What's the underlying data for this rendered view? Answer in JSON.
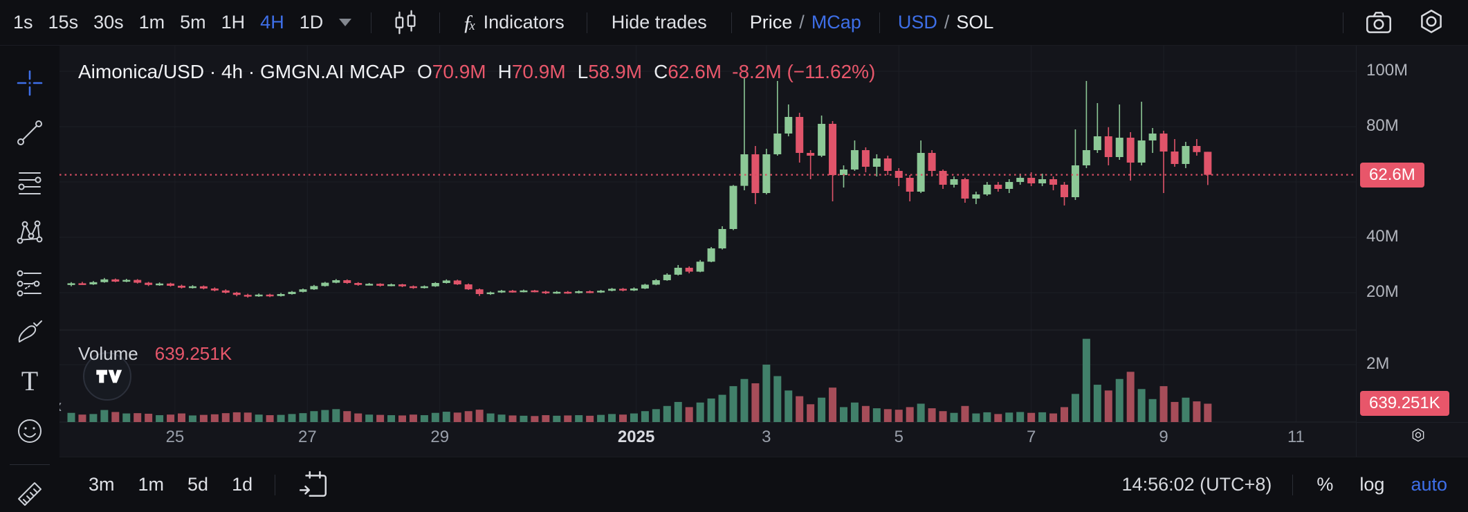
{
  "toolbar": {
    "timeframes": [
      "1s",
      "15s",
      "30s",
      "1m",
      "5m",
      "1H",
      "4H",
      "1D"
    ],
    "active_timeframe": "4H",
    "indicators": "Indicators",
    "hide_trades": "Hide trades",
    "price": "Price",
    "mcap": "MCap",
    "usd": "USD",
    "sol": "SOL",
    "slash": "/"
  },
  "legend": {
    "title": "Aimonica/USD · 4h · GMGN.AI MCAP",
    "o_label": "O",
    "o_value": "70.9M",
    "h_label": "H",
    "h_value": "70.9M",
    "l_label": "L",
    "l_value": "58.9M",
    "c_label": "C",
    "c_value": "62.6M",
    "change": "-8.2M (−11.62%)"
  },
  "volume_legend": {
    "label": "Volume",
    "value": "639.251K"
  },
  "bottom_bar": {
    "ranges": [
      "3m",
      "1m",
      "5d",
      "1d"
    ],
    "clock": "14:56:02 (UTC+8)",
    "percent": "%",
    "log": "log",
    "auto": "auto"
  },
  "edge_marker": "«",
  "colors": {
    "up": "#8cc896",
    "down": "#e0546a",
    "vol_up": "#41806a",
    "vol_down": "#a64d59",
    "accent_blue": "#3e6fe8",
    "badge": "#e8566a",
    "last_price_line": "#d84f63",
    "grid": "#1c1e25",
    "pane_divider": "#23262e"
  },
  "chart_data": {
    "type": "candlestick",
    "title": "Aimonica/USD · 4h · GMGN.AI MCAP",
    "symbol": "Aimonica/USD",
    "interval": "4h",
    "source": "GMGN.AI MCAP",
    "price_unit": "M",
    "volume_unit": "K",
    "last_price": 62.6,
    "last_price_label": "62.6M",
    "last_volume_k": 639.251,
    "last_volume_label": "639.251K",
    "ohlc_last": {
      "open": 70.9,
      "high": 70.9,
      "low": 58.9,
      "close": 62.6,
      "change": -8.2,
      "change_pct": -11.62
    },
    "price_ticks": [
      {
        "label": "100M",
        "value": 100
      },
      {
        "label": "80M",
        "value": 80
      },
      {
        "label": "60M",
        "value": 60
      },
      {
        "label": "40M",
        "value": 40
      },
      {
        "label": "20M",
        "value": 20
      }
    ],
    "volume_tick": {
      "label": "2M",
      "value_k": 2000
    },
    "time_ticks": [
      {
        "label": "25",
        "i": 9.4
      },
      {
        "label": "27",
        "i": 21.4
      },
      {
        "label": "29",
        "i": 33.4
      },
      {
        "label": "2025",
        "i": 51.2
      },
      {
        "label": "3",
        "i": 63
      },
      {
        "label": "5",
        "i": 75
      },
      {
        "label": "7",
        "i": 87
      },
      {
        "label": "9",
        "i": 99
      },
      {
        "label": "11",
        "i": 111
      }
    ],
    "candles_format": [
      "open",
      "high",
      "low",
      "close",
      "volume_k"
    ],
    "candles": [
      [
        22.8,
        23.8,
        22.3,
        23.4,
        320
      ],
      [
        23.4,
        23.9,
        22.8,
        23,
        260
      ],
      [
        23,
        24.2,
        22.8,
        23.8,
        280
      ],
      [
        23.8,
        25.3,
        23.6,
        24.8,
        420
      ],
      [
        24.8,
        25.1,
        23.8,
        24,
        350
      ],
      [
        24,
        25,
        23.8,
        24.6,
        300
      ],
      [
        24.6,
        24.9,
        23.3,
        23.6,
        310
      ],
      [
        23.6,
        23.9,
        22.4,
        22.8,
        290
      ],
      [
        22.8,
        23.7,
        22.5,
        23.3,
        240
      ],
      [
        23.3,
        23.6,
        22.2,
        22.5,
        260
      ],
      [
        22.5,
        22.9,
        21.5,
        21.8,
        300
      ],
      [
        21.8,
        22.7,
        21.5,
        22.3,
        230
      ],
      [
        22.3,
        22.6,
        21.2,
        21.5,
        250
      ],
      [
        21.5,
        21.9,
        20.5,
        20.8,
        270
      ],
      [
        20.8,
        21.2,
        19.7,
        20,
        310
      ],
      [
        20,
        20.3,
        18.7,
        19.2,
        340
      ],
      [
        19.2,
        19.6,
        18.2,
        18.7,
        330
      ],
      [
        18.7,
        19.7,
        18.5,
        19.3,
        260
      ],
      [
        19.3,
        19.6,
        18.4,
        18.8,
        240
      ],
      [
        18.8,
        19.9,
        18.6,
        19.5,
        250
      ],
      [
        19.5,
        20.6,
        19.3,
        20.3,
        280
      ],
      [
        20.3,
        21.5,
        20.1,
        21.2,
        310
      ],
      [
        21.2,
        22.8,
        21,
        22.4,
        380
      ],
      [
        22.4,
        23.9,
        22.2,
        23.6,
        420
      ],
      [
        23.6,
        24.9,
        23.4,
        24.5,
        450
      ],
      [
        24.5,
        24.8,
        23.2,
        23.5,
        380
      ],
      [
        23.5,
        23.8,
        22.5,
        22.8,
        300
      ],
      [
        22.8,
        23.5,
        22.6,
        23.2,
        260
      ],
      [
        23.2,
        23.4,
        22.2,
        22.5,
        250
      ],
      [
        22.5,
        23.3,
        22.3,
        23,
        240
      ],
      [
        23,
        23.2,
        22,
        22.3,
        230
      ],
      [
        22.3,
        22.6,
        21.4,
        21.7,
        260
      ],
      [
        21.7,
        22.6,
        21.5,
        22.3,
        240
      ],
      [
        22.3,
        23.8,
        22.1,
        23.5,
        320
      ],
      [
        23.5,
        24.8,
        23.3,
        24.4,
        360
      ],
      [
        24.4,
        24.7,
        22.8,
        23,
        330
      ],
      [
        23,
        23.3,
        21,
        21.2,
        380
      ],
      [
        21.2,
        21.5,
        18.8,
        19.5,
        430
      ],
      [
        19.5,
        20.4,
        19.2,
        20.1,
        300
      ],
      [
        20.1,
        21,
        19.9,
        20.7,
        260
      ],
      [
        20.7,
        21,
        20,
        20.3,
        230
      ],
      [
        20.3,
        21.1,
        20.1,
        20.8,
        220
      ],
      [
        20.8,
        21,
        20.1,
        20.4,
        210
      ],
      [
        20.4,
        20.7,
        19.5,
        19.8,
        240
      ],
      [
        19.8,
        20.6,
        19.6,
        20.3,
        220
      ],
      [
        20.3,
        20.6,
        19.6,
        19.9,
        230
      ],
      [
        19.9,
        20.8,
        19.7,
        20.5,
        240
      ],
      [
        20.5,
        20.8,
        19.8,
        20.1,
        220
      ],
      [
        20.1,
        21,
        19.9,
        20.7,
        250
      ],
      [
        20.7,
        21.7,
        20.5,
        21.4,
        280
      ],
      [
        21.4,
        21.7,
        20.5,
        20.8,
        260
      ],
      [
        20.8,
        21.9,
        20.6,
        21.5,
        300
      ],
      [
        21.5,
        23.2,
        21.3,
        22.9,
        380
      ],
      [
        22.9,
        24.9,
        22.7,
        24.5,
        450
      ],
      [
        24.5,
        27,
        24.3,
        26.5,
        560
      ],
      [
        26.5,
        30,
        26.2,
        29,
        700
      ],
      [
        29,
        29.5,
        27,
        27.6,
        520
      ],
      [
        27.6,
        31.8,
        27.4,
        31.2,
        680
      ],
      [
        31.2,
        36.5,
        31,
        36,
        820
      ],
      [
        36,
        44,
        35.6,
        43,
        950
      ],
      [
        43,
        58.9,
        42.6,
        58.6,
        1250
      ],
      [
        58.6,
        97.5,
        57,
        70,
        1500
      ],
      [
        70,
        73,
        52,
        56,
        1350
      ],
      [
        56,
        72,
        55.5,
        70,
        2000
      ],
      [
        70,
        96.5,
        69.5,
        77.5,
        1600
      ],
      [
        77.5,
        88,
        76.5,
        83.5,
        1100
      ],
      [
        83.5,
        85,
        67,
        70.5,
        900
      ],
      [
        70.5,
        71.5,
        61,
        69.5,
        620
      ],
      [
        69.5,
        84,
        69,
        81,
        850
      ],
      [
        81,
        82,
        53,
        62.5,
        1200
      ],
      [
        62.5,
        66,
        58,
        64.5,
        520
      ],
      [
        64.5,
        75,
        64,
        71.5,
        680
      ],
      [
        71.5,
        72.5,
        63.5,
        65.5,
        560
      ],
      [
        65.5,
        70,
        62,
        68.5,
        480
      ],
      [
        68.5,
        69.5,
        62.5,
        64,
        450
      ],
      [
        64,
        65,
        58.5,
        61.5,
        430
      ],
      [
        61.5,
        62.5,
        53,
        56.5,
        520
      ],
      [
        56.5,
        75,
        56,
        70.5,
        640
      ],
      [
        70.5,
        71.5,
        62,
        64,
        480
      ],
      [
        64,
        64.5,
        57.5,
        59,
        380
      ],
      [
        59,
        62,
        58,
        61,
        320
      ],
      [
        61,
        61.5,
        52.5,
        54,
        560
      ],
      [
        54,
        56.5,
        52,
        55.5,
        300
      ],
      [
        55.5,
        60,
        55,
        59,
        340
      ],
      [
        59,
        60,
        56.5,
        57.5,
        280
      ],
      [
        57.5,
        61,
        56,
        60,
        330
      ],
      [
        60,
        63,
        59,
        61.5,
        350
      ],
      [
        61.5,
        63.5,
        58.5,
        59.5,
        320
      ],
      [
        59.5,
        63,
        58.5,
        61,
        340
      ],
      [
        61,
        62,
        57,
        59,
        300
      ],
      [
        59,
        60,
        51.5,
        54.5,
        520
      ],
      [
        54.5,
        79,
        53.5,
        66,
        980
      ],
      [
        66,
        96.5,
        65,
        71.5,
        2900
      ],
      [
        71.5,
        88.5,
        70.5,
        76.5,
        1300
      ],
      [
        76.5,
        79.8,
        66,
        69,
        1100
      ],
      [
        69,
        88,
        68,
        76,
        1500
      ],
      [
        76,
        78,
        60.5,
        67,
        1750
      ],
      [
        67,
        89,
        66,
        75,
        1150
      ],
      [
        75,
        79.5,
        70.5,
        77.5,
        800
      ],
      [
        77.5,
        78.5,
        56,
        71,
        1250
      ],
      [
        71,
        75.5,
        65.5,
        66.5,
        700
      ],
      [
        66.5,
        74.5,
        65,
        73,
        850
      ],
      [
        73,
        75.5,
        69.5,
        70.8,
        720
      ],
      [
        70.9,
        70.9,
        58.9,
        62.6,
        639.251
      ]
    ]
  }
}
